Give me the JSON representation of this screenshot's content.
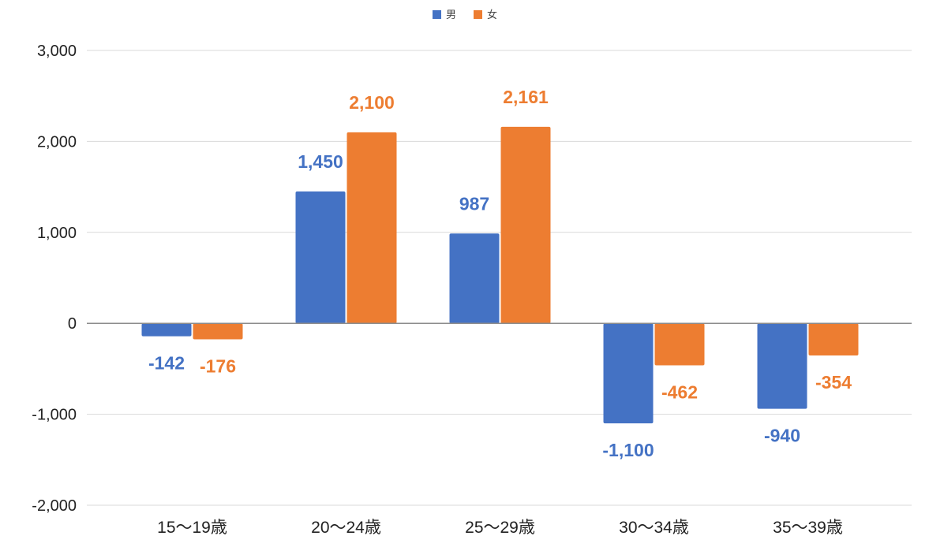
{
  "chart_data": {
    "type": "bar",
    "categories": [
      "15〜19歳",
      "20〜24歳",
      "25〜29歳",
      "30〜34歳",
      "35〜39歳"
    ],
    "series": [
      {
        "name": "男",
        "color": "#4472C4",
        "values": [
          -142,
          1450,
          987,
          -1100,
          -940
        ],
        "labels": [
          "-142",
          "1,450",
          "987",
          "-1,100",
          "-940"
        ]
      },
      {
        "name": "女",
        "color": "#ED7D31",
        "values": [
          -176,
          2100,
          2161,
          -462,
          -354
        ],
        "labels": [
          "-176",
          "2,100",
          "2,161",
          "-462",
          "-354"
        ]
      }
    ],
    "ylim": [
      -2000,
      3000
    ],
    "yticks": [
      3000,
      2000,
      1000,
      0,
      -1000,
      -2000
    ],
    "ytick_labels": [
      "3,000",
      "2,000",
      "1,000",
      "0",
      "-1,000",
      "-2,000"
    ],
    "grid": true,
    "legend_position": "top-center",
    "title": "",
    "xlabel": "",
    "ylabel": ""
  }
}
